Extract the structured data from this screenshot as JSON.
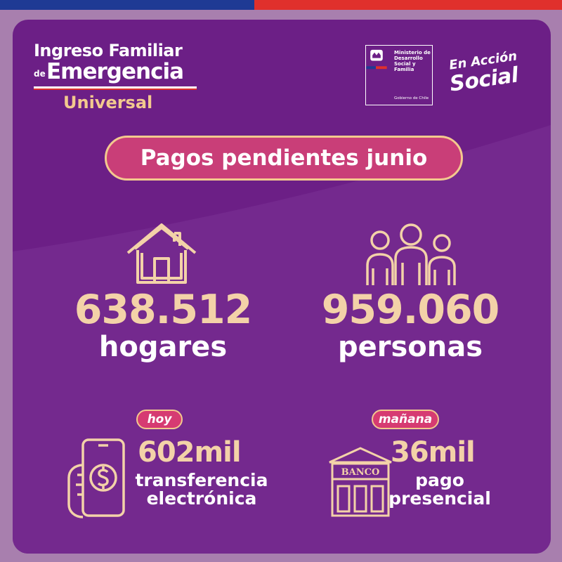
{
  "colors": {
    "card": "#6c1f86",
    "accent": "#f3c98e",
    "pill": "#c93e78",
    "number": "#f3d2a8",
    "blue": "#1f3a94",
    "red": "#e0302c"
  },
  "logo": {
    "line1": "Ingreso Familiar",
    "de": "de",
    "line2": "Emergencia",
    "line3": "Universal"
  },
  "ministerio": {
    "text": "Ministerio de\nDesarrollo\nSocial y\nFamilia",
    "gobierno": "Gobierno de Chile"
  },
  "accion": {
    "line1": "En Acción",
    "line2": "Social"
  },
  "headline": "Pagos pendientes junio",
  "stats": {
    "hogares": {
      "value": "638.512",
      "label": "hogares",
      "icon": "house-icon"
    },
    "personas": {
      "value": "959.060",
      "label": "personas",
      "icon": "family-icon"
    }
  },
  "payments": {
    "hoy": {
      "tag": "hoy",
      "value": "602mil",
      "line1": "transferencia",
      "line2": "electrónica",
      "icon": "phone-money-icon"
    },
    "manana": {
      "tag": "mañana",
      "value": "36mil",
      "line1": "pago",
      "line2": "presencial",
      "icon": "bank-icon",
      "bank_sign": "BANCO"
    }
  }
}
